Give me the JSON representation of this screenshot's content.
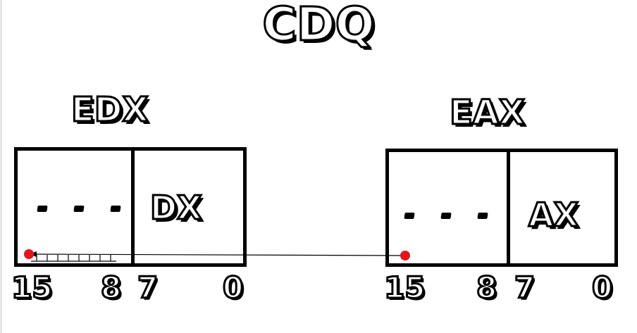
{
  "title": "CDQ",
  "registers": {
    "edx": {
      "name": "EDX",
      "upper": "...",
      "lower": "DX",
      "bits": [
        "15",
        "8",
        "7",
        "0"
      ]
    },
    "eax": {
      "name": "EAX",
      "upper": "...",
      "lower": "AX",
      "bits": [
        "15",
        "8",
        "7",
        "0"
      ]
    }
  },
  "colors": {
    "stroke": "#000000",
    "fill": "#ffffff",
    "marker": "#e8141c"
  },
  "icons": {
    "marker": "red-dot-icon",
    "arrowhead": "arrowhead-icon"
  }
}
